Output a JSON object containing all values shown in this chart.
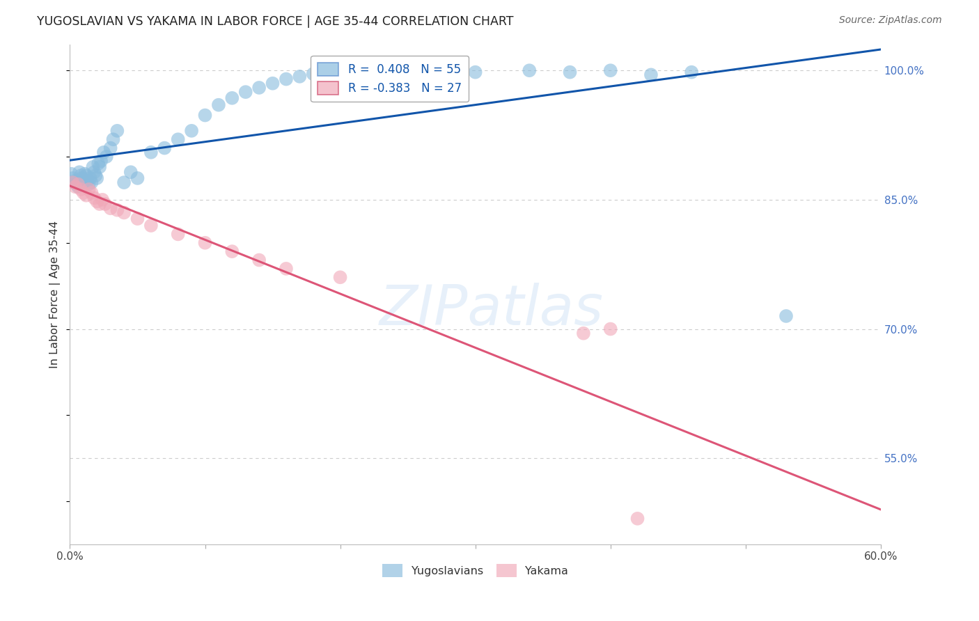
{
  "title": "YUGOSLAVIAN VS YAKAMA IN LABOR FORCE | AGE 35-44 CORRELATION CHART",
  "source": "Source: ZipAtlas.com",
  "ylabel": "In Labor Force | Age 35-44",
  "xlim": [
    0.0,
    0.6
  ],
  "ylim": [
    0.45,
    1.03
  ],
  "xtick_positions": [
    0.0,
    0.1,
    0.2,
    0.3,
    0.4,
    0.5,
    0.6
  ],
  "xticklabels": [
    "0.0%",
    "",
    "",
    "",
    "",
    "",
    "60.0%"
  ],
  "ytick_right": [
    1.0,
    0.85,
    0.7,
    0.55
  ],
  "ytick_right_labels": [
    "100.0%",
    "85.0%",
    "70.0%",
    "55.0%"
  ],
  "blue_color": "#88bbdd",
  "pink_color": "#f0a8b8",
  "blue_line_color": "#1155aa",
  "pink_line_color": "#dd5577",
  "legend_blue_label": "R =  0.408   N = 55",
  "legend_pink_label": "R = -0.383   N = 27",
  "blue_scatter_x": [
    0.001,
    0.002,
    0.003,
    0.004,
    0.005,
    0.006,
    0.007,
    0.008,
    0.009,
    0.01,
    0.011,
    0.012,
    0.013,
    0.014,
    0.015,
    0.016,
    0.017,
    0.018,
    0.019,
    0.02,
    0.021,
    0.022,
    0.023,
    0.025,
    0.027,
    0.03,
    0.032,
    0.035,
    0.04,
    0.045,
    0.05,
    0.06,
    0.07,
    0.08,
    0.09,
    0.1,
    0.11,
    0.12,
    0.13,
    0.14,
    0.15,
    0.16,
    0.17,
    0.18,
    0.2,
    0.22,
    0.24,
    0.26,
    0.3,
    0.34,
    0.37,
    0.4,
    0.43,
    0.46,
    0.53
  ],
  "blue_scatter_y": [
    0.88,
    0.875,
    0.87,
    0.872,
    0.868,
    0.865,
    0.882,
    0.878,
    0.875,
    0.87,
    0.88,
    0.878,
    0.872,
    0.868,
    0.875,
    0.87,
    0.888,
    0.882,
    0.878,
    0.875,
    0.892,
    0.888,
    0.895,
    0.905,
    0.9,
    0.91,
    0.92,
    0.93,
    0.87,
    0.882,
    0.875,
    0.905,
    0.91,
    0.92,
    0.93,
    0.948,
    0.96,
    0.968,
    0.975,
    0.98,
    0.985,
    0.99,
    0.993,
    0.996,
    1.0,
    0.995,
    0.998,
    1.0,
    0.998,
    1.0,
    0.998,
    1.0,
    0.995,
    0.998,
    0.715
  ],
  "pink_scatter_x": [
    0.002,
    0.004,
    0.006,
    0.008,
    0.01,
    0.012,
    0.014,
    0.016,
    0.018,
    0.02,
    0.022,
    0.024,
    0.026,
    0.03,
    0.035,
    0.04,
    0.05,
    0.06,
    0.08,
    0.1,
    0.12,
    0.14,
    0.16,
    0.2,
    0.38,
    0.4,
    0.42
  ],
  "pink_scatter_y": [
    0.87,
    0.865,
    0.868,
    0.862,
    0.858,
    0.855,
    0.862,
    0.858,
    0.852,
    0.848,
    0.845,
    0.85,
    0.845,
    0.84,
    0.838,
    0.835,
    0.828,
    0.82,
    0.81,
    0.8,
    0.79,
    0.78,
    0.77,
    0.76,
    0.695,
    0.7,
    0.48
  ],
  "watermark_text": "ZIPatlas",
  "background_color": "#ffffff",
  "grid_color": "#cccccc"
}
